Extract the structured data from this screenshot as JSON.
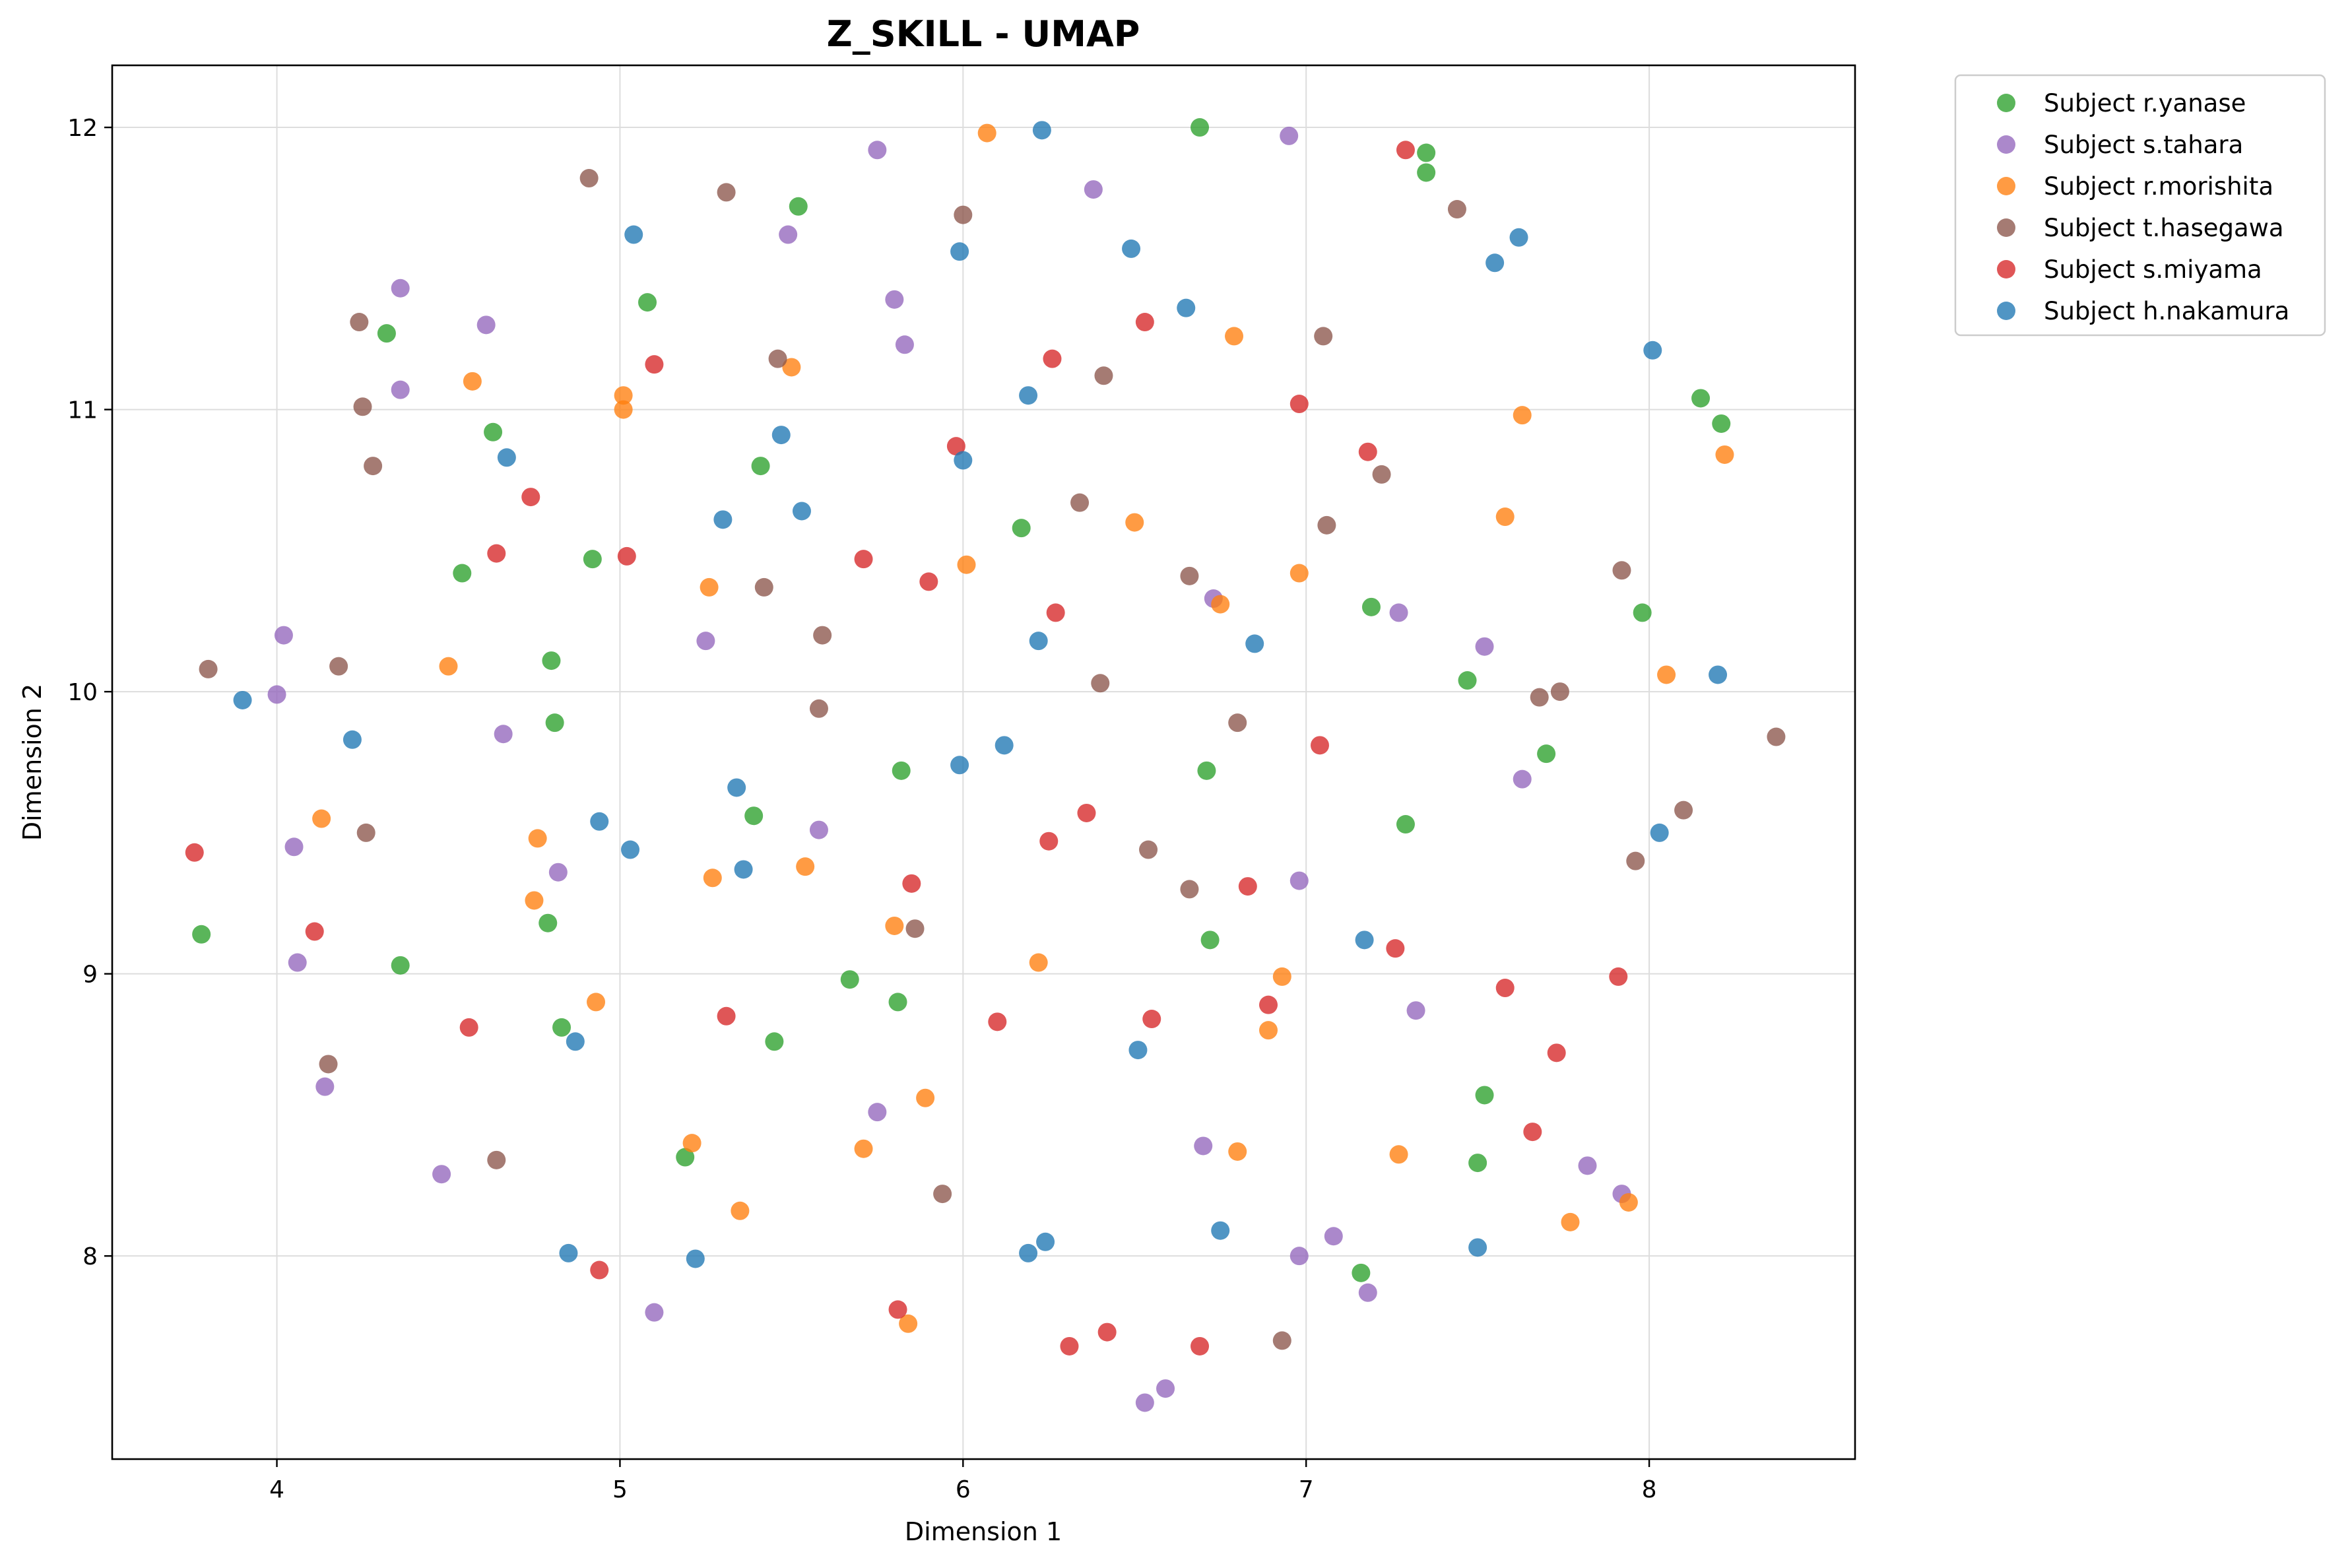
{
  "chart_data": {
    "type": "scatter",
    "title": "Z_SKILL - UMAP",
    "xlabel": "Dimension 1",
    "ylabel": "Dimension 2",
    "xlim": [
      3.52,
      8.6
    ],
    "ylim": [
      7.28,
      12.22
    ],
    "xticks": [
      4,
      5,
      6,
      7,
      8
    ],
    "yticks": [
      8,
      9,
      10,
      11,
      12
    ],
    "grid": true,
    "legend_position": "outside-top-right",
    "series": [
      {
        "name": "Subject r.yanase",
        "color": "#2ca02c",
        "points": [
          [
            3.78,
            9.14
          ],
          [
            4.32,
            11.27
          ],
          [
            4.36,
            9.03
          ],
          [
            4.54,
            10.42
          ],
          [
            4.63,
            10.92
          ],
          [
            4.79,
            9.18
          ],
          [
            4.8,
            10.11
          ],
          [
            4.81,
            9.89
          ],
          [
            4.83,
            8.81
          ],
          [
            4.92,
            10.47
          ],
          [
            5.08,
            11.38
          ],
          [
            5.19,
            8.35
          ],
          [
            5.39,
            9.56
          ],
          [
            5.41,
            10.8
          ],
          [
            5.45,
            8.76
          ],
          [
            5.52,
            11.72
          ],
          [
            5.67,
            8.98
          ],
          [
            5.81,
            8.9
          ],
          [
            5.82,
            9.72
          ],
          [
            6.17,
            10.58
          ],
          [
            6.69,
            12.0
          ],
          [
            6.71,
            9.72
          ],
          [
            6.72,
            9.12
          ],
          [
            7.16,
            7.94
          ],
          [
            7.19,
            10.3
          ],
          [
            7.29,
            9.53
          ],
          [
            7.35,
            11.91
          ],
          [
            7.35,
            11.84
          ],
          [
            7.47,
            10.04
          ],
          [
            7.5,
            8.33
          ],
          [
            7.52,
            8.57
          ],
          [
            7.7,
            9.78
          ],
          [
            7.98,
            10.28
          ],
          [
            8.15,
            11.04
          ],
          [
            8.21,
            10.95
          ]
        ]
      },
      {
        "name": "Subject s.tahara",
        "color": "#9467bd",
        "points": [
          [
            4.0,
            9.99
          ],
          [
            4.02,
            10.2
          ],
          [
            4.05,
            9.45
          ],
          [
            4.06,
            9.04
          ],
          [
            4.14,
            8.6
          ],
          [
            4.36,
            11.43
          ],
          [
            4.36,
            11.07
          ],
          [
            4.48,
            8.29
          ],
          [
            4.61,
            11.3
          ],
          [
            4.66,
            9.85
          ],
          [
            4.82,
            9.36
          ],
          [
            5.1,
            7.8
          ],
          [
            5.25,
            10.18
          ],
          [
            5.49,
            11.62
          ],
          [
            5.58,
            9.51
          ],
          [
            5.75,
            8.51
          ],
          [
            5.75,
            11.92
          ],
          [
            5.8,
            11.39
          ],
          [
            5.83,
            11.23
          ],
          [
            6.38,
            11.78
          ],
          [
            6.53,
            7.48
          ],
          [
            6.59,
            7.53
          ],
          [
            6.7,
            8.39
          ],
          [
            6.73,
            10.33
          ],
          [
            6.95,
            11.97
          ],
          [
            6.98,
            8.0
          ],
          [
            6.98,
            9.33
          ],
          [
            7.08,
            8.07
          ],
          [
            7.18,
            7.87
          ],
          [
            7.27,
            10.28
          ],
          [
            7.32,
            8.87
          ],
          [
            7.52,
            10.16
          ],
          [
            7.63,
            9.69
          ],
          [
            7.82,
            8.32
          ],
          [
            7.92,
            8.22
          ]
        ]
      },
      {
        "name": "Subject r.morishita",
        "color": "#ff7f0e",
        "points": [
          [
            4.13,
            9.55
          ],
          [
            4.5,
            10.09
          ],
          [
            4.57,
            11.1
          ],
          [
            4.75,
            9.26
          ],
          [
            4.76,
            9.48
          ],
          [
            4.93,
            8.9
          ],
          [
            5.01,
            11.0
          ],
          [
            5.01,
            11.05
          ],
          [
            5.21,
            8.4
          ],
          [
            5.26,
            10.37
          ],
          [
            5.27,
            9.34
          ],
          [
            5.35,
            8.16
          ],
          [
            5.5,
            11.15
          ],
          [
            5.54,
            9.38
          ],
          [
            5.71,
            8.38
          ],
          [
            5.8,
            9.17
          ],
          [
            5.84,
            7.76
          ],
          [
            5.89,
            8.56
          ],
          [
            6.01,
            10.45
          ],
          [
            6.07,
            11.98
          ],
          [
            6.22,
            9.04
          ],
          [
            6.5,
            10.6
          ],
          [
            6.75,
            10.31
          ],
          [
            6.79,
            11.26
          ],
          [
            6.8,
            8.37
          ],
          [
            6.89,
            8.8
          ],
          [
            6.93,
            8.99
          ],
          [
            6.98,
            10.42
          ],
          [
            7.27,
            8.36
          ],
          [
            7.58,
            10.62
          ],
          [
            7.63,
            10.98
          ],
          [
            7.77,
            8.12
          ],
          [
            7.94,
            8.19
          ],
          [
            8.05,
            10.06
          ],
          [
            8.22,
            10.84
          ]
        ]
      },
      {
        "name": "Subject t.hasegawa",
        "color": "#8c564b",
        "points": [
          [
            3.8,
            10.08
          ],
          [
            4.15,
            8.68
          ],
          [
            4.18,
            10.09
          ],
          [
            4.24,
            11.31
          ],
          [
            4.25,
            11.01
          ],
          [
            4.26,
            9.5
          ],
          [
            4.28,
            10.8
          ],
          [
            4.64,
            8.34
          ],
          [
            4.91,
            11.82
          ],
          [
            5.31,
            11.77
          ],
          [
            5.42,
            10.37
          ],
          [
            5.46,
            11.18
          ],
          [
            5.58,
            9.94
          ],
          [
            5.59,
            10.2
          ],
          [
            5.86,
            9.16
          ],
          [
            5.94,
            8.22
          ],
          [
            6.0,
            11.69
          ],
          [
            6.34,
            10.67
          ],
          [
            6.4,
            10.03
          ],
          [
            6.41,
            11.12
          ],
          [
            6.54,
            9.44
          ],
          [
            6.66,
            10.41
          ],
          [
            6.66,
            9.3
          ],
          [
            6.8,
            9.89
          ],
          [
            6.93,
            7.7
          ],
          [
            7.05,
            11.26
          ],
          [
            7.06,
            10.59
          ],
          [
            7.22,
            10.77
          ],
          [
            7.44,
            11.71
          ],
          [
            7.68,
            9.98
          ],
          [
            7.74,
            10.0
          ],
          [
            7.92,
            10.43
          ],
          [
            7.96,
            9.4
          ],
          [
            8.1,
            9.58
          ],
          [
            8.37,
            9.84
          ]
        ]
      },
      {
        "name": "Subject s.miyama",
        "color": "#d62728",
        "points": [
          [
            3.76,
            9.43
          ],
          [
            4.11,
            9.15
          ],
          [
            4.56,
            8.81
          ],
          [
            4.64,
            10.49
          ],
          [
            4.74,
            10.69
          ],
          [
            4.94,
            7.95
          ],
          [
            5.02,
            10.48
          ],
          [
            5.1,
            11.16
          ],
          [
            5.31,
            8.85
          ],
          [
            5.71,
            10.47
          ],
          [
            5.81,
            7.81
          ],
          [
            5.85,
            9.32
          ],
          [
            5.9,
            10.39
          ],
          [
            5.98,
            10.87
          ],
          [
            6.1,
            8.83
          ],
          [
            6.25,
            9.47
          ],
          [
            6.26,
            11.18
          ],
          [
            6.27,
            10.28
          ],
          [
            6.31,
            7.68
          ],
          [
            6.36,
            9.57
          ],
          [
            6.42,
            7.73
          ],
          [
            6.53,
            11.31
          ],
          [
            6.55,
            8.84
          ],
          [
            6.69,
            7.68
          ],
          [
            6.83,
            9.31
          ],
          [
            6.89,
            8.89
          ],
          [
            6.98,
            11.02
          ],
          [
            7.04,
            9.81
          ],
          [
            7.18,
            10.85
          ],
          [
            7.26,
            9.09
          ],
          [
            7.29,
            11.92
          ],
          [
            7.58,
            8.95
          ],
          [
            7.66,
            8.44
          ],
          [
            7.73,
            8.72
          ],
          [
            7.91,
            8.99
          ]
        ]
      },
      {
        "name": "Subject h.nakamura",
        "color": "#1f77b4",
        "points": [
          [
            3.9,
            9.97
          ],
          [
            4.22,
            9.83
          ],
          [
            4.67,
            10.83
          ],
          [
            4.85,
            8.01
          ],
          [
            4.87,
            8.76
          ],
          [
            4.94,
            9.54
          ],
          [
            5.03,
            9.44
          ],
          [
            5.04,
            11.62
          ],
          [
            5.22,
            7.99
          ],
          [
            5.3,
            10.61
          ],
          [
            5.34,
            9.66
          ],
          [
            5.36,
            9.37
          ],
          [
            5.47,
            10.91
          ],
          [
            5.53,
            10.64
          ],
          [
            5.99,
            9.74
          ],
          [
            5.99,
            11.56
          ],
          [
            6.0,
            10.82
          ],
          [
            6.12,
            9.81
          ],
          [
            6.19,
            8.01
          ],
          [
            6.19,
            11.05
          ],
          [
            6.22,
            10.18
          ],
          [
            6.23,
            11.99
          ],
          [
            6.24,
            8.05
          ],
          [
            6.49,
            11.57
          ],
          [
            6.51,
            8.73
          ],
          [
            6.65,
            11.36
          ],
          [
            6.75,
            8.09
          ],
          [
            6.85,
            10.17
          ],
          [
            7.17,
            9.12
          ],
          [
            7.5,
            8.03
          ],
          [
            7.55,
            11.52
          ],
          [
            7.62,
            11.61
          ],
          [
            8.01,
            11.21
          ],
          [
            8.03,
            9.5
          ],
          [
            8.2,
            10.06
          ]
        ]
      }
    ]
  }
}
